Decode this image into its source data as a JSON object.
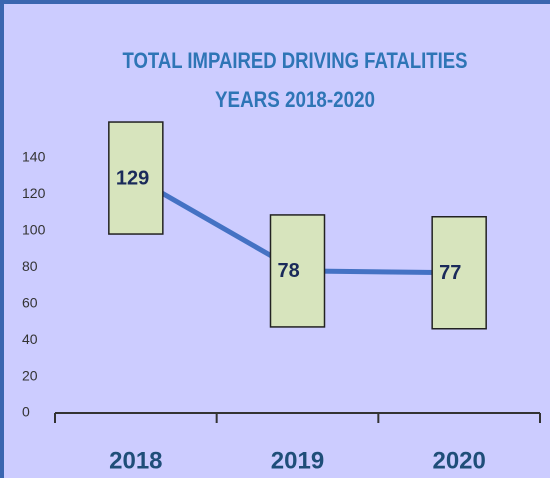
{
  "chart_data": {
    "type": "line",
    "title": "TOTAL IMPAIRED DRIVING FATALITIES",
    "subtitle": "YEARS 2018-2020",
    "categories": [
      "2018",
      "2019",
      "2020"
    ],
    "series": [
      {
        "name": "Fatalities",
        "color": "#4472c4",
        "values": [
          129,
          78,
          77
        ]
      }
    ],
    "ylim": [
      0,
      140
    ],
    "yticks": [
      0,
      20,
      40,
      60,
      80,
      100,
      120,
      140
    ],
    "label_box_color": "#d7e4bd",
    "grid": false
  }
}
